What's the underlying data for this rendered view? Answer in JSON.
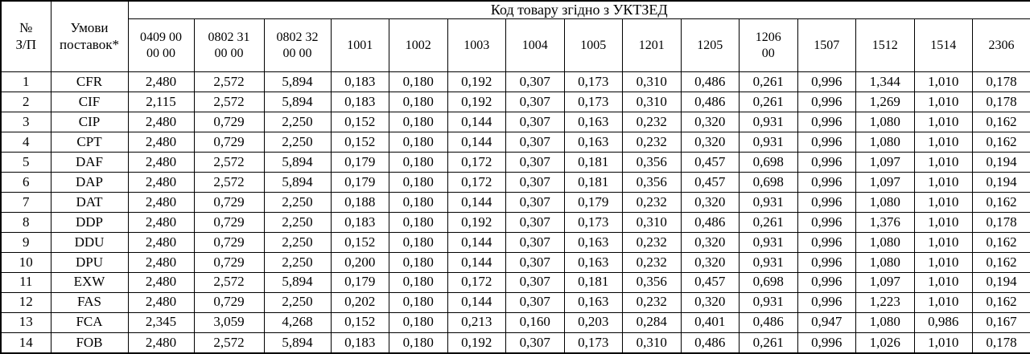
{
  "table": {
    "corner_headers": [
      "№\nЗ/П",
      "Умови\nпоставок*"
    ],
    "group_header": "Код товару згідно з УКТЗЕД",
    "code_columns": [
      "0409 00\n00 00",
      "0802 31\n00 00",
      "0802 32\n00 00",
      "1001",
      "1002",
      "1003",
      "1004",
      "1005",
      "1201",
      "1205",
      "1206\n00",
      "1507",
      "1512",
      "1514",
      "2306"
    ],
    "rows": [
      {
        "num": "1",
        "term": "CFR",
        "values": [
          "2,480",
          "2,572",
          "5,894",
          "0,183",
          "0,180",
          "0,192",
          "0,307",
          "0,173",
          "0,310",
          "0,486",
          "0,261",
          "0,996",
          "1,344",
          "1,010",
          "0,178"
        ]
      },
      {
        "num": "2",
        "term": "CIF",
        "values": [
          "2,115",
          "2,572",
          "5,894",
          "0,183",
          "0,180",
          "0,192",
          "0,307",
          "0,173",
          "0,310",
          "0,486",
          "0,261",
          "0,996",
          "1,269",
          "1,010",
          "0,178"
        ]
      },
      {
        "num": "3",
        "term": "CIP",
        "values": [
          "2,480",
          "0,729",
          "2,250",
          "0,152",
          "0,180",
          "0,144",
          "0,307",
          "0,163",
          "0,232",
          "0,320",
          "0,931",
          "0,996",
          "1,080",
          "1,010",
          "0,162"
        ]
      },
      {
        "num": "4",
        "term": "CPT",
        "values": [
          "2,480",
          "0,729",
          "2,250",
          "0,152",
          "0,180",
          "0,144",
          "0,307",
          "0,163",
          "0,232",
          "0,320",
          "0,931",
          "0,996",
          "1,080",
          "1,010",
          "0,162"
        ]
      },
      {
        "num": "5",
        "term": "DAF",
        "values": [
          "2,480",
          "2,572",
          "5,894",
          "0,179",
          "0,180",
          "0,172",
          "0,307",
          "0,181",
          "0,356",
          "0,457",
          "0,698",
          "0,996",
          "1,097",
          "1,010",
          "0,194"
        ]
      },
      {
        "num": "6",
        "term": "DAP",
        "values": [
          "2,480",
          "2,572",
          "5,894",
          "0,179",
          "0,180",
          "0,172",
          "0,307",
          "0,181",
          "0,356",
          "0,457",
          "0,698",
          "0,996",
          "1,097",
          "1,010",
          "0,194"
        ]
      },
      {
        "num": "7",
        "term": "DAT",
        "values": [
          "2,480",
          "0,729",
          "2,250",
          "0,188",
          "0,180",
          "0,144",
          "0,307",
          "0,179",
          "0,232",
          "0,320",
          "0,931",
          "0,996",
          "1,080",
          "1,010",
          "0,162"
        ]
      },
      {
        "num": "8",
        "term": "DDP",
        "values": [
          "2,480",
          "0,729",
          "2,250",
          "0,183",
          "0,180",
          "0,192",
          "0,307",
          "0,173",
          "0,310",
          "0,486",
          "0,261",
          "0,996",
          "1,376",
          "1,010",
          "0,178"
        ]
      },
      {
        "num": "9",
        "term": "DDU",
        "values": [
          "2,480",
          "0,729",
          "2,250",
          "0,152",
          "0,180",
          "0,144",
          "0,307",
          "0,163",
          "0,232",
          "0,320",
          "0,931",
          "0,996",
          "1,080",
          "1,010",
          "0,162"
        ]
      },
      {
        "num": "10",
        "term": "DPU",
        "values": [
          "2,480",
          "0,729",
          "2,250",
          "0,200",
          "0,180",
          "0,144",
          "0,307",
          "0,163",
          "0,232",
          "0,320",
          "0,931",
          "0,996",
          "1,080",
          "1,010",
          "0,162"
        ]
      },
      {
        "num": "11",
        "term": "EXW",
        "values": [
          "2,480",
          "2,572",
          "5,894",
          "0,179",
          "0,180",
          "0,172",
          "0,307",
          "0,181",
          "0,356",
          "0,457",
          "0,698",
          "0,996",
          "1,097",
          "1,010",
          "0,194"
        ]
      },
      {
        "num": "12",
        "term": "FAS",
        "values": [
          "2,480",
          "0,729",
          "2,250",
          "0,202",
          "0,180",
          "0,144",
          "0,307",
          "0,163",
          "0,232",
          "0,320",
          "0,931",
          "0,996",
          "1,223",
          "1,010",
          "0,162"
        ]
      },
      {
        "num": "13",
        "term": "FCA",
        "values": [
          "2,345",
          "3,059",
          "4,268",
          "0,152",
          "0,180",
          "0,213",
          "0,160",
          "0,203",
          "0,284",
          "0,401",
          "0,486",
          "0,947",
          "1,080",
          "0,986",
          "0,167"
        ]
      },
      {
        "num": "14",
        "term": "FOB",
        "values": [
          "2,480",
          "2,572",
          "5,894",
          "0,183",
          "0,180",
          "0,192",
          "0,307",
          "0,173",
          "0,310",
          "0,486",
          "0,261",
          "0,996",
          "1,026",
          "1,010",
          "0,178"
        ]
      }
    ],
    "colors": {
      "border": "#000000",
      "text": "#000000",
      "background": "#ffffff"
    }
  }
}
